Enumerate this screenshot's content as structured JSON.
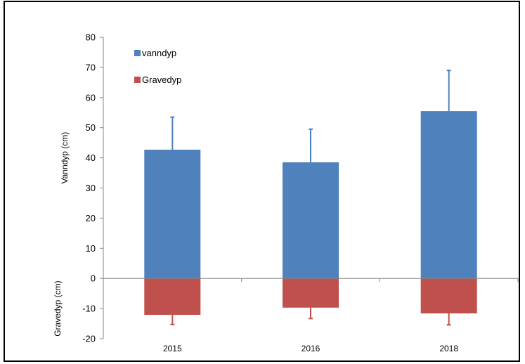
{
  "chart_data": {
    "type": "bar",
    "categories": [
      "2015",
      "2016",
      "2018"
    ],
    "series": [
      {
        "name": "vanndyp",
        "color": "#4f81bd",
        "values": [
          42.7,
          38.5,
          55.5
        ],
        "error_plus": [
          10.8,
          11.0,
          13.5
        ]
      },
      {
        "name": "Gravedyp",
        "color": "#c0504d",
        "values": [
          -12.1,
          -9.7,
          -11.6
        ],
        "error_minus": [
          3.2,
          3.6,
          3.8
        ]
      }
    ],
    "stacked": true,
    "ylabel_positive": "Vanndyp (cm)",
    "ylabel_negative": "Gravedyp (cm)",
    "xlabel": "",
    "ylim": [
      -20,
      80
    ],
    "yticks": [
      80,
      70,
      60,
      50,
      40,
      30,
      20,
      10,
      0,
      -10,
      -20
    ],
    "grid": false,
    "legend_position": "top-left"
  }
}
